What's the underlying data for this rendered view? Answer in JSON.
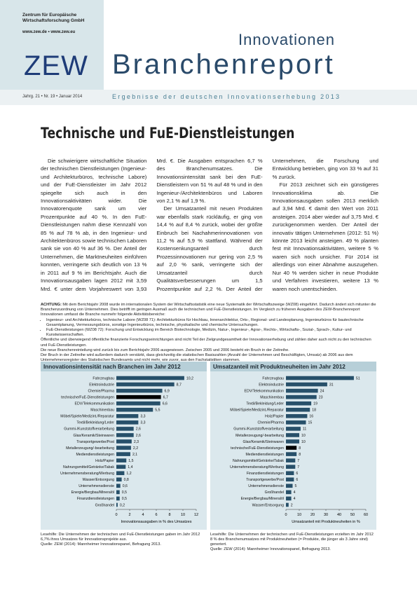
{
  "header": {
    "org": "Zentrum für Europäische Wirtschaftsforschung GmbH",
    "web": "www.zew.de • www.zew.eu",
    "logo": "ZEW",
    "series": "Innovationen",
    "title": "Branchenreport",
    "issue": "Jahrg. 21 • Nr. 19 • Januar 2014",
    "subtitle": "Ergebnisse der deutschen Innovationserhebung 2013"
  },
  "article": {
    "title": "Technische und FuE-Dienstleistungen",
    "paragraphs": [
      "Die schwierigere wirtschaftliche Situation der technischen Dienstleistungen (Ingenieur- und Architekturbüros, technische Labore) und der FuE-Dienstleister im Jahr 2012 spiegelte sich auch in den Innovationsaktivitäten wider. Die Innovatorenquote sank um vier Prozentpunkte auf 40 %. In den FuE-Dienstleistungen nahm diese Kennzahl von 85 % auf 78 % ab, in den Ingenieur- und Architektenbüros sowie technischen Laboren sank sie von 40 % auf 36 %. Der Anteil der Unternehmen, die Marktneuheiten einführen konnten, verringerte sich deutlich von 13 % in 2011 auf 9 % im Berichtsjahr. Auch die Innovationsausgaben lagen 2012 mit 3,59 Mrd. € unter dem Vorjahreswert von 3,93 Mrd. €. Die Ausgaben entsprachen 6,7 % des Branchenumsatzes. Die Innovationsintensität sank bei den FuE-Dienstleistern von 51 % auf 48 % und in den Ingenieur-/Architektenbüros und Laboren von 2,1 % auf 1,9 %.",
      "Der Umsatzanteil mit neuen Produkten war ebenfalls stark rückläufig, er ging von 14,4 % auf 8,4 % zurück, wobei der größte Einbruch bei Nachahmerinnovationen von 11,2 % auf 5,9 % stattfand. Während der Kostensenkungsanteil durch Prozessinnovationen nur gering von 2,5 % auf 2,0 % sank, verringerte sich der Umsatzanteil durch Qualitätsverbesserungen um 1,5 Prozentpunkte auf 2,2 %. Der Anteil der Unternehmen, die Forschung und Entwicklung betrieben, ging von 33 % auf 31 % zurück.",
      "Für 2013 zeichnet sich ein günstigeres Innovationsklima ab. Die Innovationsausgaben sollen 2013 merklich auf 3,94 Mrd. € damit den Wert von 2011 ansteigen. 2014 aber wieder auf 3,75 Mrd. € zurückgenommen werden. Der Anteil der innovativ tätigen Unternehmen (2012: 51 %) könnte 2013 leicht ansteigen. 49 % planten fest mit Innovationsaktivitäten, weitere 5 % waren sich noch unsicher. Für 2014 ist allerdings von einer Abnahme auszugehen. Nur 40 % werden sicher in neue Produkte und Verfahren investieren, weitere 13 % waren noch unentschieden."
    ]
  },
  "note": {
    "label": "ACHTUNG:",
    "text": "Mit dem Berichtsjahr 2008 wurde im internationalen System der Wirtschaftsstatistik eine neue Systematik der Wirtschaftszweige (WZ08) eingeführt. Dadurch ändert sich mitunter die Branchenzuordnung von Unternehmen. Dies betrifft im geringen Ausmaß auch die technischen und FuE-Dienstleistungen. Im Vergleich zu früheren Ausgaben des ZEW-Branchenreport Innovationen umfasst die Branche nunmehr folgende Aktivitätsbereiche:",
    "bullets": [
      "Ingenieur- und Architekturbüros, technische Labore (WZ08 71): Architekturbüros für Hochbau, Innenarchitektur, Orts-, Regional- und Landesplanung, Ingenieurbüros für bautechnische Gesamtplanung, Vermessungsbüros, sonstige Ingenieurbüros, technische, physikalische und chemische Untersuchungen.",
      "FuE-Dienstleistungen (WZ08 72): Forschung und Entwicklung im Bereich Biotechnologie, Medizin, Natur-, Ingenieur-, Agrar-, Rechts-, Wirtschafts-, Sozial-, Sprach-, Kultur- und Kunstwissenschaften."
    ],
    "lines": [
      "Öffentliche und überwiegend öffentliche finanzierte Forschungseinrichtungen sind nicht Teil der Zielgrundgesamtheit der Innovationserhebung und zählen daher auch nicht zu den technischen und FuE-Dienstleistungen.",
      "Die neue Branchenreinteilung wird zurück bis zum Berichtsjahr 2006 ausgewiesen. Zwischen 2005 und 2006 besteht ein Bruch in der Zeitreihe.",
      "Der Bruch in der Zeitreihe wird außerdem dadurch verstärkt, dass gleichzeitig die statistischen Basiszahlen (Anzahl der Unternehmen und Beschäftigten, Umsatz) ab 2006 aus dem Unternehmensregister des Statistischen Bundesamts und nicht mehr, wie zuvor, aus den Fachstatistiken stammen."
    ]
  },
  "chart_data": [
    {
      "type": "bar",
      "orientation": "horizontal",
      "title": "Innovationsintensität nach Branchen im Jahr 2012",
      "x_label": "Innovationsausgaben in % des Umsatzes",
      "color": "#27506a",
      "highlight_color": "#000000",
      "highlight": 3,
      "categories": [
        "Fahrzeugbau",
        "Elektroindustrie",
        "Chemie/Pharma",
        "technische/FuE-Dienstleistungen",
        "EDV/Telekommunikation",
        "Maschinenbau",
        "Möbel/Spiele/Medizint./Reparatur",
        "Textil/Bekleidung/Leder",
        "Gummi-/Kunststoffverarbeitung",
        "Glas/Keramik/Steinwaren",
        "Transportgewerbe/Post",
        "Metallerzeugung/-bearbeitung",
        "Mediendienstleistungen",
        "Holz/Papier",
        "Nahrungsmittel/Getränke/Tabak",
        "Unternehmensberatung/Werbung",
        "Wasser/Entsorgung",
        "Unternehmensdienste",
        "Energie/Bergbau/Mineralöl",
        "Finanzdienstleistungen",
        "Großhandel"
      ],
      "values": [
        10.2,
        8.7,
        6.9,
        6.7,
        6.6,
        5.5,
        3.3,
        3.3,
        2.6,
        2.6,
        2.3,
        2.2,
        2.1,
        1.5,
        1.4,
        1.2,
        0.8,
        0.6,
        0.5,
        0.5,
        0.2
      ],
      "value_labels": [
        "10,2",
        "8,7",
        "6,9",
        "6,7",
        "6,6",
        "5,5",
        "3,3",
        "3,3",
        "2,6",
        "2,6",
        "2,3",
        "2,2",
        "2,1",
        "1,5",
        "1,4",
        "1,2",
        "0,8",
        "0,6",
        "0,5",
        "0,5",
        "0,2"
      ],
      "xlim": [
        0,
        12
      ],
      "xticks": [
        0,
        2,
        4,
        6,
        8,
        10,
        12
      ],
      "caption": "Lesehilfe: Die Unternehmen der technischen und FuE-Dienstleistungen gaben im Jahr 2012 6,7% ihres Umsatzes für Innovationsprojekte aus.",
      "source": "Quelle: ZEW (2014): Mannheimer Innovationspanel, Befragung 2013."
    },
    {
      "type": "bar",
      "orientation": "horizontal",
      "title": "Umsatzanteil mit Produktneuheiten im Jahr 2012",
      "x_label": "Umsatzanteil mit Produktneuheiten in %",
      "color": "#27506a",
      "highlight_color": "#000000",
      "highlight": 11,
      "categories": [
        "Fahrzeugbau",
        "Elektroindustrie",
        "EDV/Telekommunikation",
        "Maschinenbau",
        "Textil/Bekleidung/Leder",
        "Möbel/Spiele/Medizint./Reparatur",
        "Holz/Papier",
        "Chemie/Pharma",
        "Gummi-/Kunststoffverarbeitung",
        "Metallerzeugung/-bearbeitung",
        "Glas/Keramik/Steinwaren",
        "technische/FuE-Dienstleistungen",
        "Mediendienstleistungen",
        "Nahrungsmittel/Getränke/Tabak",
        "Unternehmensberatung/Werbung",
        "Finanzdienstleistungen",
        "Transportgewerbe/Post",
        "Unternehmensdienste",
        "Großhandel",
        "Energie/Bergbau/Mineralöl",
        "Wasser/Entsorgung"
      ],
      "values": [
        51,
        31,
        24,
        23,
        19,
        18,
        16,
        15,
        11,
        10,
        10,
        8,
        8,
        7,
        7,
        6,
        6,
        5,
        4,
        4,
        2
      ],
      "xlim": [
        0,
        60
      ],
      "xticks": [
        0,
        10,
        20,
        30,
        40,
        50,
        60
      ],
      "caption": "Lesehilfe: Die Unternehmen der technischen und FuE-Dienstleistungen erzielten im Jahr 2012 8 % des Branchenumsatzes mit Produktneuheiten (= Produkte, die jünger als 3 Jahre sind) generiert.",
      "source": "Quelle: ZEW (2014): Mannheimer Innovationspanel, Befragung 2013."
    }
  ]
}
